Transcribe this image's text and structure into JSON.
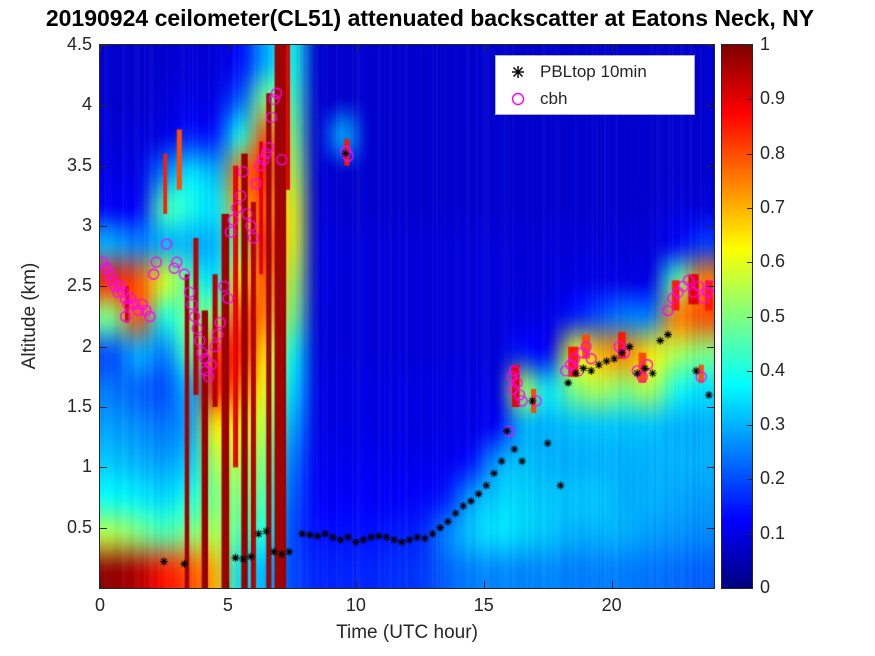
{
  "figure": {
    "title": "20190924 ceilometer(CL51) attenuated backscatter at Eatons Neck, NY",
    "background": "#ffffff"
  },
  "axes": {
    "xlabel": "Time (UTC hour)",
    "ylabel": "Altitude (km)",
    "x_ticks": [
      0,
      5,
      10,
      15,
      20
    ],
    "y_ticks": [
      0.5,
      1,
      1.5,
      2,
      2.5,
      3,
      3.5,
      4,
      4.5
    ],
    "x_range": [
      0,
      24
    ],
    "y_range": [
      0,
      4.5
    ]
  },
  "legend": {
    "items": [
      {
        "label": "PBLtop 10min",
        "marker": "asterisk",
        "color": "#000000"
      },
      {
        "label": "cbh",
        "marker": "open-circle",
        "color": "#ff00ff"
      }
    ]
  },
  "colorbar": {
    "min": 0,
    "max": 1,
    "ticks": [
      0,
      0.1,
      0.2,
      0.3,
      0.4,
      0.5,
      0.6,
      0.7,
      0.8,
      0.9,
      1
    ],
    "colormap": "jet"
  },
  "chart_data": {
    "type": "heatmap",
    "title": "20190924 ceilometer(CL51) attenuated backscatter at Eatons Neck, NY",
    "xlabel": "Time (UTC hour)",
    "ylabel": "Altitude (km)",
    "x_range": [
      0,
      24
    ],
    "y_range": [
      0,
      4.5
    ],
    "value_range": [
      0,
      1
    ],
    "colormap": "jet",
    "grid": {
      "nx": 24,
      "ny": 15,
      "x0": 0,
      "dx": 1,
      "y0": 0,
      "dy": 0.3,
      "order": "columns (1 per UTC hour), values bottom-to-top in 0.3 km bins",
      "values": [
        [
          0.98,
          0.55,
          0.38,
          0.32,
          0.28,
          0.24,
          0.2,
          0.5,
          0.85,
          0.3,
          0.12,
          0.1,
          0.09,
          0.08,
          0.08
        ],
        [
          0.95,
          0.5,
          0.36,
          0.3,
          0.26,
          0.22,
          0.3,
          0.8,
          0.8,
          0.25,
          0.12,
          0.1,
          0.09,
          0.08,
          0.08
        ],
        [
          0.85,
          0.45,
          0.34,
          0.28,
          0.24,
          0.2,
          0.25,
          0.4,
          0.6,
          0.3,
          0.45,
          0.25,
          0.1,
          0.09,
          0.08
        ],
        [
          0.8,
          0.5,
          0.4,
          0.32,
          0.28,
          0.3,
          0.45,
          0.5,
          0.45,
          0.3,
          0.4,
          0.35,
          0.15,
          0.1,
          0.09
        ],
        [
          0.7,
          0.55,
          0.5,
          0.55,
          0.65,
          0.85,
          0.8,
          0.5,
          0.35,
          0.3,
          0.35,
          0.3,
          0.15,
          0.1,
          0.09
        ],
        [
          0.35,
          0.45,
          0.5,
          0.55,
          0.6,
          0.75,
          0.85,
          0.8,
          0.65,
          0.5,
          0.7,
          0.75,
          0.4,
          0.22,
          0.14
        ],
        [
          0.3,
          0.4,
          0.45,
          0.5,
          0.55,
          0.6,
          0.65,
          0.75,
          0.8,
          0.85,
          0.8,
          0.85,
          0.8,
          0.5,
          0.3
        ],
        [
          0.2,
          0.2,
          0.22,
          0.25,
          0.3,
          0.35,
          0.4,
          0.5,
          0.55,
          0.6,
          0.6,
          0.55,
          0.5,
          0.45,
          0.4
        ],
        [
          0.16,
          0.14,
          0.12,
          0.11,
          0.1,
          0.1,
          0.09,
          0.09,
          0.09,
          0.09,
          0.08,
          0.08,
          0.08,
          0.08,
          0.08
        ],
        [
          0.16,
          0.14,
          0.12,
          0.11,
          0.1,
          0.1,
          0.09,
          0.09,
          0.09,
          0.09,
          0.08,
          0.08,
          0.3,
          0.08,
          0.08
        ],
        [
          0.16,
          0.14,
          0.12,
          0.11,
          0.1,
          0.1,
          0.09,
          0.09,
          0.09,
          0.09,
          0.08,
          0.08,
          0.08,
          0.08,
          0.08
        ],
        [
          0.17,
          0.15,
          0.12,
          0.11,
          0.1,
          0.1,
          0.09,
          0.09,
          0.09,
          0.09,
          0.08,
          0.08,
          0.08,
          0.08,
          0.08
        ],
        [
          0.18,
          0.16,
          0.13,
          0.11,
          0.1,
          0.1,
          0.09,
          0.09,
          0.09,
          0.09,
          0.08,
          0.08,
          0.08,
          0.08,
          0.08
        ],
        [
          0.22,
          0.25,
          0.15,
          0.11,
          0.1,
          0.1,
          0.09,
          0.09,
          0.09,
          0.09,
          0.08,
          0.08,
          0.08,
          0.08,
          0.08
        ],
        [
          0.25,
          0.32,
          0.28,
          0.14,
          0.1,
          0.1,
          0.09,
          0.09,
          0.09,
          0.09,
          0.08,
          0.08,
          0.08,
          0.08,
          0.08
        ],
        [
          0.26,
          0.35,
          0.33,
          0.28,
          0.12,
          0.1,
          0.09,
          0.09,
          0.09,
          0.09,
          0.08,
          0.08,
          0.08,
          0.08,
          0.08
        ],
        [
          0.26,
          0.34,
          0.34,
          0.32,
          0.3,
          0.55,
          0.15,
          0.1,
          0.09,
          0.09,
          0.08,
          0.08,
          0.08,
          0.08,
          0.08
        ],
        [
          0.26,
          0.32,
          0.32,
          0.3,
          0.3,
          0.35,
          0.12,
          0.1,
          0.09,
          0.09,
          0.08,
          0.08,
          0.08,
          0.08,
          0.08
        ],
        [
          0.25,
          0.3,
          0.32,
          0.3,
          0.32,
          0.5,
          0.6,
          0.15,
          0.1,
          0.09,
          0.08,
          0.08,
          0.08,
          0.08,
          0.08
        ],
        [
          0.25,
          0.3,
          0.32,
          0.3,
          0.32,
          0.55,
          0.7,
          0.2,
          0.1,
          0.09,
          0.08,
          0.08,
          0.08,
          0.08,
          0.08
        ],
        [
          0.25,
          0.3,
          0.3,
          0.3,
          0.32,
          0.5,
          0.75,
          0.25,
          0.1,
          0.09,
          0.08,
          0.08,
          0.08,
          0.08,
          0.08
        ],
        [
          0.24,
          0.28,
          0.3,
          0.3,
          0.32,
          0.55,
          0.65,
          0.25,
          0.1,
          0.09,
          0.08,
          0.08,
          0.08,
          0.08,
          0.08
        ],
        [
          0.23,
          0.27,
          0.29,
          0.3,
          0.3,
          0.4,
          0.55,
          0.75,
          0.45,
          0.12,
          0.09,
          0.08,
          0.08,
          0.08,
          0.08
        ],
        [
          0.22,
          0.26,
          0.28,
          0.3,
          0.3,
          0.35,
          0.5,
          0.8,
          0.75,
          0.18,
          0.09,
          0.08,
          0.08,
          0.08,
          0.08
        ]
      ]
    },
    "streaks": [
      [
        1.05,
        0.15,
        2.2,
        2.5,
        0.92
      ],
      [
        2.55,
        0.15,
        3.1,
        3.6,
        0.85
      ],
      [
        3.1,
        0.2,
        3.3,
        3.8,
        0.8
      ],
      [
        3.4,
        0.18,
        0,
        2.6,
        0.97
      ],
      [
        3.75,
        0.2,
        1.6,
        2.9,
        0.95
      ],
      [
        4.1,
        0.25,
        0,
        2.3,
        0.97
      ],
      [
        4.5,
        0.2,
        1.5,
        2.6,
        0.95
      ],
      [
        4.9,
        0.3,
        0,
        3.1,
        0.97
      ],
      [
        5.3,
        0.2,
        1.0,
        3.5,
        0.9
      ],
      [
        5.65,
        0.25,
        0,
        3.6,
        0.97
      ],
      [
        6.0,
        0.2,
        0,
        3.2,
        0.95
      ],
      [
        6.3,
        0.15,
        2.6,
        3.7,
        0.9
      ],
      [
        6.6,
        0.2,
        0,
        4.1,
        0.97
      ],
      [
        7.05,
        0.45,
        0,
        4.5,
        0.97
      ],
      [
        7.35,
        0.15,
        3.3,
        4.5,
        0.9
      ],
      [
        9.65,
        0.2,
        3.5,
        3.72,
        0.85
      ],
      [
        16.25,
        0.3,
        1.5,
        1.85,
        0.9
      ],
      [
        16.95,
        0.2,
        1.45,
        1.65,
        0.8
      ],
      [
        18.5,
        0.4,
        1.75,
        2.0,
        0.85
      ],
      [
        19.0,
        0.3,
        1.9,
        2.1,
        0.8
      ],
      [
        20.4,
        0.3,
        1.9,
        2.12,
        0.85
      ],
      [
        21.2,
        0.3,
        1.7,
        1.95,
        0.8
      ],
      [
        22.5,
        0.3,
        2.3,
        2.55,
        0.85
      ],
      [
        23.2,
        0.4,
        2.35,
        2.6,
        0.9
      ],
      [
        23.5,
        0.2,
        1.7,
        1.85,
        0.8
      ],
      [
        23.8,
        0.3,
        2.3,
        2.55,
        0.85
      ]
    ],
    "series": [
      {
        "name": "PBLtop 10min",
        "marker": "asterisk",
        "color": "#000000",
        "points": [
          [
            2.5,
            0.22
          ],
          [
            3.3,
            0.2
          ],
          [
            5.3,
            0.25
          ],
          [
            5.6,
            0.24
          ],
          [
            5.9,
            0.26
          ],
          [
            6.2,
            0.45
          ],
          [
            6.5,
            0.47
          ],
          [
            6.8,
            0.3
          ],
          [
            7.1,
            0.28
          ],
          [
            7.4,
            0.3
          ],
          [
            7.9,
            0.45
          ],
          [
            8.2,
            0.44
          ],
          [
            8.5,
            0.43
          ],
          [
            8.8,
            0.45
          ],
          [
            9.1,
            0.42
          ],
          [
            9.4,
            0.4
          ],
          [
            9.6,
            3.6
          ],
          [
            9.7,
            0.42
          ],
          [
            10.0,
            0.38
          ],
          [
            10.3,
            0.4
          ],
          [
            10.6,
            0.42
          ],
          [
            10.9,
            0.43
          ],
          [
            11.2,
            0.42
          ],
          [
            11.5,
            0.4
          ],
          [
            11.8,
            0.38
          ],
          [
            12.1,
            0.4
          ],
          [
            12.4,
            0.42
          ],
          [
            12.7,
            0.41
          ],
          [
            13.0,
            0.45
          ],
          [
            13.3,
            0.5
          ],
          [
            13.6,
            0.55
          ],
          [
            13.9,
            0.62
          ],
          [
            14.2,
            0.68
          ],
          [
            14.5,
            0.72
          ],
          [
            14.8,
            0.78
          ],
          [
            15.1,
            0.85
          ],
          [
            15.4,
            0.95
          ],
          [
            15.7,
            1.05
          ],
          [
            15.9,
            1.3
          ],
          [
            16.2,
            1.15
          ],
          [
            16.5,
            1.05
          ],
          [
            16.9,
            1.55
          ],
          [
            17.5,
            1.2
          ],
          [
            18.0,
            0.85
          ],
          [
            18.3,
            1.7
          ],
          [
            18.6,
            1.78
          ],
          [
            18.9,
            1.82
          ],
          [
            19.2,
            1.8
          ],
          [
            19.5,
            1.85
          ],
          [
            19.8,
            1.88
          ],
          [
            20.1,
            1.9
          ],
          [
            20.4,
            1.95
          ],
          [
            20.7,
            2.0
          ],
          [
            21.0,
            1.78
          ],
          [
            21.3,
            1.82
          ],
          [
            21.6,
            1.78
          ],
          [
            21.9,
            2.05
          ],
          [
            22.2,
            2.1
          ],
          [
            23.3,
            1.8
          ],
          [
            23.8,
            1.6
          ]
        ]
      },
      {
        "name": "cbh",
        "marker": "open-circle",
        "color": "#ff00ff",
        "points": [
          [
            0.1,
            2.7
          ],
          [
            0.25,
            2.65
          ],
          [
            0.4,
            2.6
          ],
          [
            0.5,
            2.55
          ],
          [
            0.6,
            2.5
          ],
          [
            0.7,
            2.45
          ],
          [
            0.8,
            2.5
          ],
          [
            0.9,
            2.45
          ],
          [
            1.0,
            2.4
          ],
          [
            1.0,
            2.25
          ],
          [
            1.1,
            2.35
          ],
          [
            1.2,
            2.4
          ],
          [
            1.35,
            2.35
          ],
          [
            1.5,
            2.3
          ],
          [
            1.65,
            2.35
          ],
          [
            1.8,
            2.3
          ],
          [
            1.95,
            2.25
          ],
          [
            2.1,
            2.6
          ],
          [
            2.2,
            2.7
          ],
          [
            2.6,
            2.85
          ],
          [
            2.9,
            2.65
          ],
          [
            3.0,
            2.7
          ],
          [
            3.3,
            2.6
          ],
          [
            3.5,
            2.45
          ],
          [
            3.6,
            2.35
          ],
          [
            3.7,
            2.25
          ],
          [
            3.8,
            2.15
          ],
          [
            3.9,
            2.05
          ],
          [
            4.0,
            1.95
          ],
          [
            4.1,
            1.9
          ],
          [
            4.15,
            1.8
          ],
          [
            4.25,
            1.75
          ],
          [
            4.35,
            1.85
          ],
          [
            4.5,
            2.0
          ],
          [
            4.6,
            2.1
          ],
          [
            4.7,
            2.2
          ],
          [
            4.85,
            2.5
          ],
          [
            5.0,
            2.4
          ],
          [
            5.1,
            2.95
          ],
          [
            5.2,
            3.05
          ],
          [
            5.35,
            3.15
          ],
          [
            5.5,
            3.25
          ],
          [
            5.6,
            3.45
          ],
          [
            5.75,
            3.1
          ],
          [
            5.9,
            3.0
          ],
          [
            6.0,
            2.9
          ],
          [
            6.1,
            3.35
          ],
          [
            6.25,
            3.5
          ],
          [
            6.4,
            3.55
          ],
          [
            6.5,
            3.6
          ],
          [
            6.6,
            3.65
          ],
          [
            6.7,
            3.9
          ],
          [
            6.8,
            4.05
          ],
          [
            6.9,
            4.1
          ],
          [
            7.1,
            3.55
          ],
          [
            9.6,
            3.62
          ],
          [
            9.7,
            3.58
          ],
          [
            16.0,
            1.3
          ],
          [
            16.1,
            1.75
          ],
          [
            16.15,
            1.65
          ],
          [
            16.2,
            1.8
          ],
          [
            16.3,
            1.7
          ],
          [
            16.4,
            1.6
          ],
          [
            16.5,
            1.55
          ],
          [
            17.05,
            1.55
          ],
          [
            18.2,
            1.8
          ],
          [
            18.4,
            1.85
          ],
          [
            18.55,
            1.9
          ],
          [
            18.7,
            1.8
          ],
          [
            18.85,
            1.95
          ],
          [
            19.0,
            2.0
          ],
          [
            19.2,
            1.9
          ],
          [
            20.3,
            2.0
          ],
          [
            20.5,
            1.95
          ],
          [
            21.0,
            1.8
          ],
          [
            21.2,
            1.75
          ],
          [
            21.4,
            1.85
          ],
          [
            22.2,
            2.3
          ],
          [
            22.4,
            2.4
          ],
          [
            22.6,
            2.45
          ],
          [
            22.8,
            2.5
          ],
          [
            23.0,
            2.55
          ],
          [
            23.2,
            2.45
          ],
          [
            23.4,
            2.5
          ],
          [
            23.5,
            1.75
          ],
          [
            23.6,
            2.4
          ],
          [
            23.75,
            2.45
          ],
          [
            23.9,
            2.5
          ]
        ]
      }
    ]
  }
}
